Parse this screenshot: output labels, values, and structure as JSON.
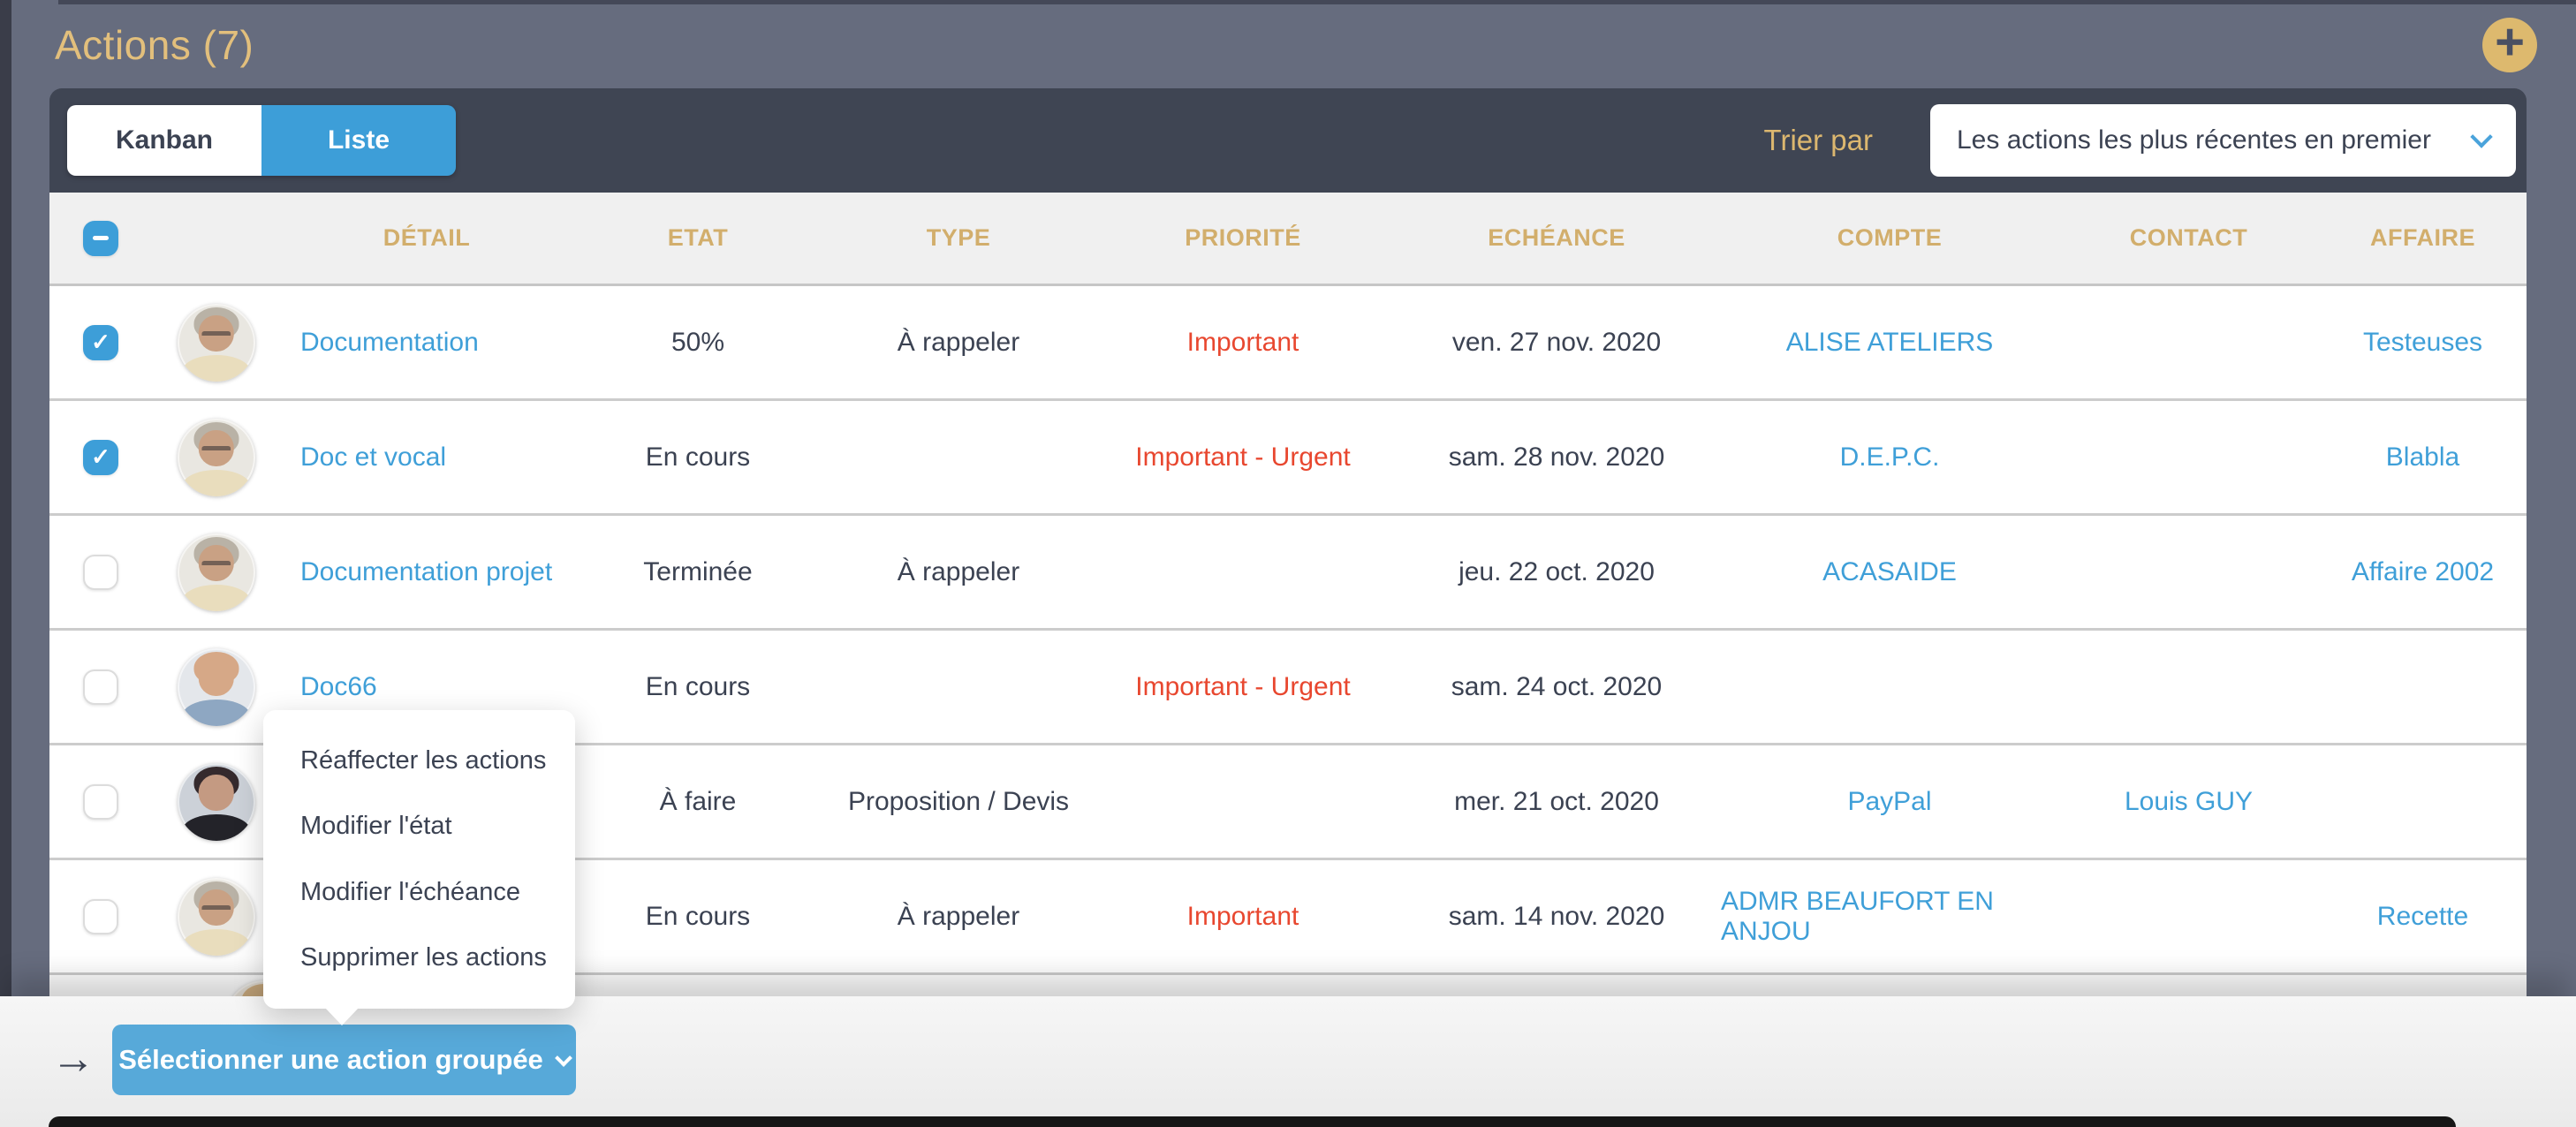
{
  "page": {
    "title": "Actions (7)"
  },
  "toolbar": {
    "view_toggle": [
      {
        "label": "Kanban",
        "active": false
      },
      {
        "label": "Liste",
        "active": true
      }
    ],
    "sort_label": "Trier par",
    "sort_value": "Les actions les plus récentes en premier"
  },
  "table": {
    "columns": [
      "DÉTAIL",
      "ETAT",
      "TYPE",
      "PRIORITÉ",
      "ECHÉANCE",
      "COMPTE",
      "CONTACT",
      "AFFAIRE"
    ],
    "rows": [
      {
        "checked": true,
        "avatar": "man-glasses",
        "detail": "Documentation",
        "etat": "50%",
        "type": "À rappeler",
        "priorite": "Important",
        "echeance": "ven. 27 nov. 2020",
        "compte": "ALISE ATELIERS",
        "contact": "",
        "affaire": "Testeuses"
      },
      {
        "checked": true,
        "avatar": "man-glasses",
        "detail": "Doc et vocal",
        "etat": "En cours",
        "type": "",
        "priorite": "Important - Urgent",
        "echeance": "sam. 28 nov. 2020",
        "compte": "D.E.P.C.",
        "contact": "",
        "affaire": "Blabla"
      },
      {
        "checked": false,
        "avatar": "man-glasses",
        "detail": "Documentation projet",
        "etat": "Terminée",
        "type": "À rappeler",
        "priorite": "",
        "echeance": "jeu. 22 oct. 2020",
        "compte": "ACASAIDE",
        "contact": "",
        "affaire": "Affaire 2002"
      },
      {
        "checked": false,
        "avatar": "man-bald",
        "detail": "Doc66",
        "etat": "En cours",
        "type": "",
        "priorite": "Important - Urgent",
        "echeance": "sam. 24 oct. 2020",
        "compte": "",
        "contact": "",
        "affaire": ""
      },
      {
        "checked": false,
        "avatar": "woman",
        "detail": "",
        "etat": "À faire",
        "type": "Proposition / Devis",
        "priorite": "",
        "echeance": "mer. 21 oct. 2020",
        "compte": "PayPal",
        "contact": "Louis GUY",
        "affaire": ""
      },
      {
        "checked": false,
        "avatar": "man-glasses",
        "detail": "",
        "etat": "En cours",
        "type": "À rappeler",
        "priorite": "Important",
        "echeance": "sam. 14 nov. 2020",
        "compte": "ADMR BEAUFORT EN ANJOU",
        "contact": "",
        "affaire": "Recette"
      }
    ],
    "partial_row_avatar": "man-tan"
  },
  "context_menu": {
    "items": [
      "Réaffecter les actions",
      "Modifier l'état",
      "Modifier l'échéance",
      "Supprimer les actions"
    ]
  },
  "footer": {
    "bulk_button": "Sélectionner une action groupée",
    "arrow": "→"
  },
  "colors": {
    "page_background": "#666c7e",
    "toolbar_background": "#3f4553",
    "accent_gold": "#dcb76f",
    "accent_blue": "#3d9ed8",
    "link_blue": "#3f9fd8",
    "priority_red": "#e8472f",
    "text_dark": "#3b4252"
  }
}
